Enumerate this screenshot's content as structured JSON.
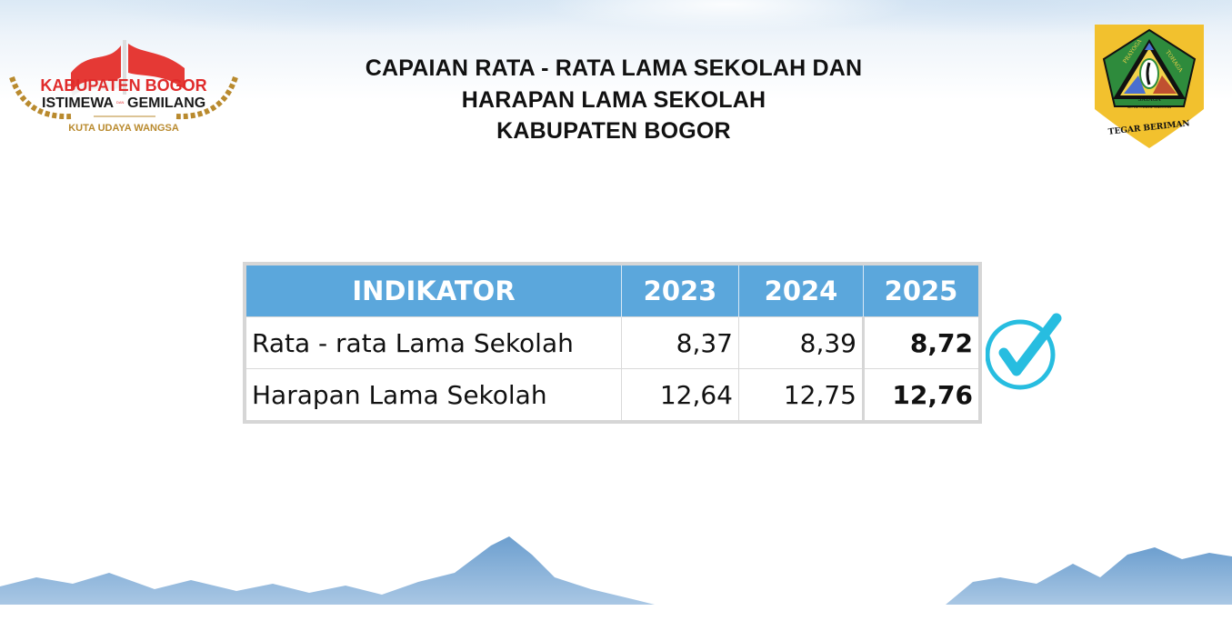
{
  "header": {
    "title_lines": [
      "CAPAIAN RATA - RATA LAMA SEKOLAH DAN",
      "HARAPAN LAMA SEKOLAH",
      "KABUPATEN BOGOR"
    ]
  },
  "logo_left": {
    "line1": "KABUPATEN BOGOR",
    "line2a": "ISTIMEWA",
    "line2b": "DAN",
    "line2c": "GEMILANG",
    "tagline": "KUTA UDAYA WANGSA"
  },
  "logo_right": {
    "top_left": "PRAYOGA",
    "top_right": "TOHAGA",
    "center": "SAYAGA",
    "ribbon": "KUTA UDAYA WANGSA",
    "motto": "TEGAR BERIMAN"
  },
  "table": {
    "headers": [
      "INDIKATOR",
      "2023",
      "2024",
      "2025"
    ],
    "rows": [
      {
        "indicator": "Rata - rata Lama Sekolah",
        "y2023": "8,37",
        "y2024": "8,39",
        "y2025": "8,72"
      },
      {
        "indicator": "Harapan Lama Sekolah",
        "y2023": "12,64",
        "y2024": "12,75",
        "y2025": "12,76"
      }
    ]
  },
  "colors": {
    "header_bg": "#5ba7dc",
    "check": "#27bde0",
    "logo_red": "#e02b2b",
    "logo_gold": "#b98a2e"
  },
  "icons": {
    "status": "check-circle-icon"
  }
}
